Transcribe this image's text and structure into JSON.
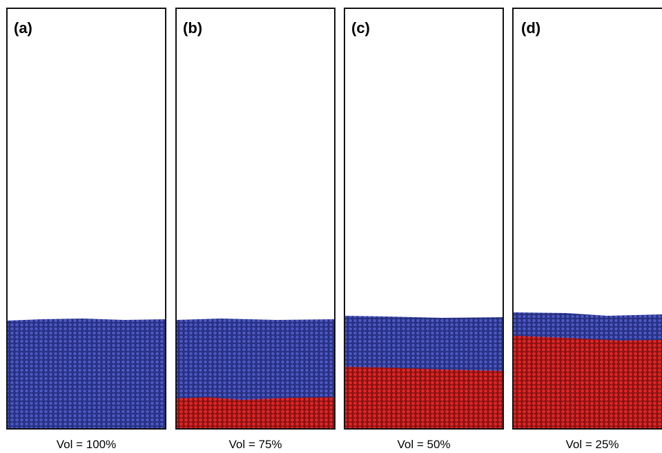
{
  "panels": [
    {
      "label": "(a)",
      "caption": "Vol = 100%"
    },
    {
      "label": "(b)",
      "caption": "Vol = 75%"
    },
    {
      "label": "(c)",
      "caption": "Vol = 50%"
    },
    {
      "label": "(d)",
      "caption": "Vol = 25%"
    }
  ]
}
